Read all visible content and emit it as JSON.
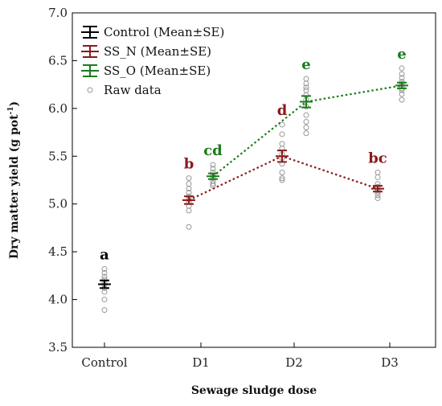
{
  "chart_data": {
    "type": "scatter",
    "xlabel": "Sewage sludge dose",
    "ylabel": "Dry matter yield  (g pot",
    "ylabel_sup": "-1",
    "ylabel_close": ")",
    "categories": [
      "Control",
      "D1",
      "D2",
      "D3"
    ],
    "ylim": [
      3.5,
      7.0
    ],
    "yticks": [
      3.5,
      4.0,
      4.5,
      5.0,
      5.5,
      6.0,
      6.5,
      7.0
    ],
    "ytick_labels": [
      "3.5",
      "4.0",
      "4.5",
      "5.0",
      "5.5",
      "6.0",
      "6.5",
      "7.0"
    ],
    "legend_position": "top-left",
    "series": [
      {
        "name": "Control (Mean±SE)",
        "color": "#000000",
        "line_style": "none",
        "points": [
          {
            "category": "Control",
            "mean": 4.16,
            "se": 0.04,
            "label": "a",
            "raw": [
              3.89,
              4.0,
              4.08,
              4.12,
              4.15,
              4.18,
              4.21,
              4.24,
              4.28,
              4.32
            ]
          }
        ]
      },
      {
        "name": "SS_N (Mean±SE)",
        "color": "#8b1a1a",
        "line_style": "dotted",
        "points": [
          {
            "category": "D1",
            "mean": 5.04,
            "se": 0.04,
            "label": "b",
            "raw": [
              4.76,
              4.93,
              4.98,
              5.02,
              5.05,
              5.08,
              5.12,
              5.16,
              5.21,
              5.27
            ]
          },
          {
            "category": "D2",
            "mean": 5.5,
            "se": 0.06,
            "label": "d",
            "raw": [
              5.25,
              5.27,
              5.33,
              5.42,
              5.48,
              5.52,
              5.58,
              5.63,
              5.73,
              5.83
            ]
          },
          {
            "category": "D3",
            "mean": 5.16,
            "se": 0.03,
            "label": "bc",
            "raw": [
              5.06,
              5.09,
              5.12,
              5.14,
              5.16,
              5.18,
              5.21,
              5.28,
              5.33
            ]
          }
        ]
      },
      {
        "name": "SS_O (Mean±SE)",
        "color": "#1a7d1a",
        "line_style": "dotted",
        "points": [
          {
            "category": "D1",
            "mean": 5.29,
            "se": 0.03,
            "label": "cd",
            "raw": [
              5.19,
              5.21,
              5.24,
              5.27,
              5.3,
              5.33,
              5.37,
              5.41
            ]
          },
          {
            "category": "D2",
            "mean": 6.07,
            "se": 0.06,
            "label": "e",
            "raw": [
              5.74,
              5.8,
              5.86,
              5.93,
              6.02,
              6.09,
              6.14,
              6.19,
              6.22,
              6.26,
              6.31
            ]
          },
          {
            "category": "D3",
            "mean": 6.24,
            "se": 0.03,
            "label": "e",
            "raw": [
              6.09,
              6.15,
              6.19,
              6.21,
              6.23,
              6.26,
              6.28,
              6.32,
              6.36,
              6.42
            ]
          }
        ]
      }
    ],
    "raw_legend_label": "Raw data",
    "raw_marker_color": "#999999",
    "grid": false
  }
}
